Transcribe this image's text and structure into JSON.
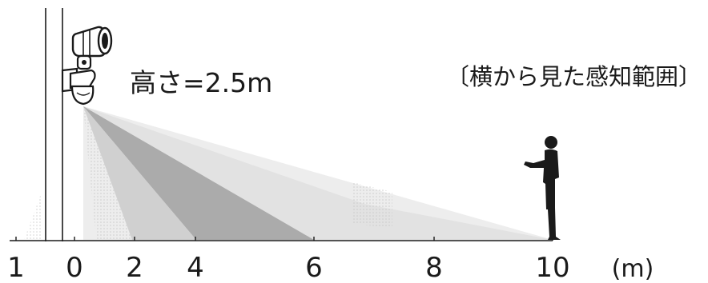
{
  "title": "〔横から見た感知範囲〕",
  "height_label": "高さ=2.5m",
  "axis": {
    "ticks": [
      "1",
      "0",
      "2",
      "4",
      "6",
      "8",
      "10"
    ],
    "unit": "(m)"
  },
  "colors": {
    "ink": "#1a1a1a",
    "zone_dark": "#a9a9a9",
    "zone_mid": "#d4d4d4",
    "zone_light": "#e9e9e9"
  },
  "icons": {
    "sensor_light": "floodlight-icon",
    "person": "person-icon"
  }
}
